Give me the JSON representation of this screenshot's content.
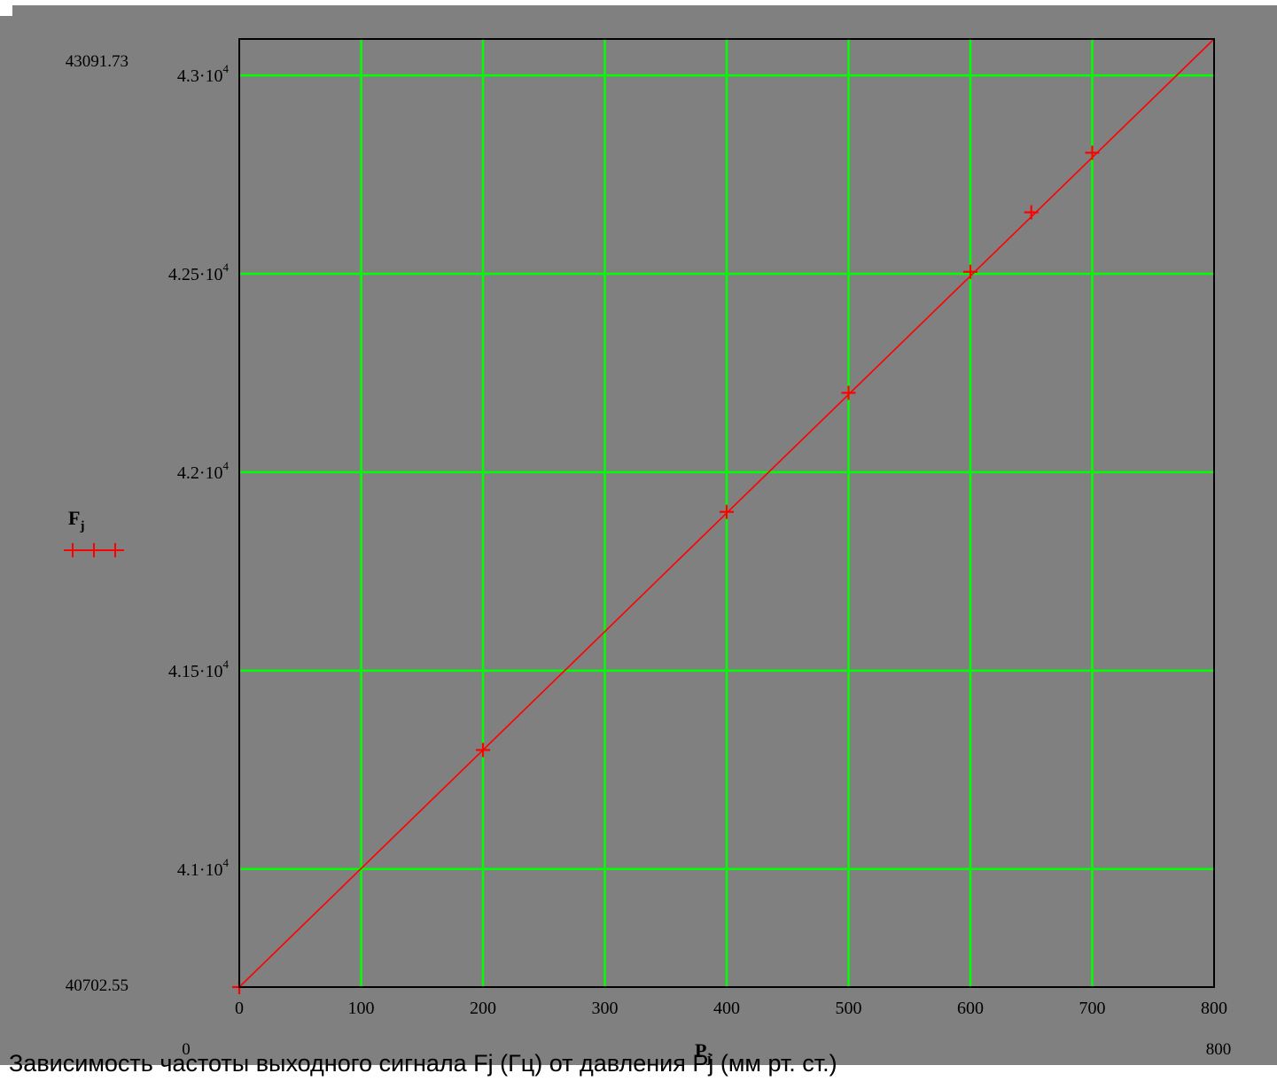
{
  "chart_data": {
    "type": "line",
    "caption": "Зависимость частоты выходного сигнала Fj (Гц) от давления Pj (мм рт. ст.)",
    "xlabel": "P",
    "xlabel_sub": "j",
    "ylabel": "F",
    "ylabel_sub": "j",
    "xlim": [
      0,
      800
    ],
    "ylim": [
      40702.55,
      43091.73
    ],
    "x_limit_labels": {
      "min": "0",
      "max": "800"
    },
    "y_limit_labels": {
      "min": "40702.55",
      "max": "43091.73"
    },
    "x_ticks": [
      {
        "value": 0,
        "label": "0"
      },
      {
        "value": 100,
        "label": "100"
      },
      {
        "value": 200,
        "label": "200"
      },
      {
        "value": 300,
        "label": "300"
      },
      {
        "value": 400,
        "label": "400"
      },
      {
        "value": 500,
        "label": "500"
      },
      {
        "value": 600,
        "label": "600"
      },
      {
        "value": 700,
        "label": "700"
      },
      {
        "value": 800,
        "label": "800"
      }
    ],
    "y_ticks": [
      {
        "value": 41000,
        "mantissa": "4.1·10",
        "exp": "4"
      },
      {
        "value": 41500,
        "mantissa": "4.15·10",
        "exp": "4"
      },
      {
        "value": 42000,
        "mantissa": "4.2·10",
        "exp": "4"
      },
      {
        "value": 42500,
        "mantissa": "4.25·10",
        "exp": "4"
      },
      {
        "value": 43000,
        "mantissa": "4.3·10",
        "exp": "4"
      }
    ],
    "grid": true,
    "series": [
      {
        "marker": "cross",
        "x": [
          0,
          200,
          400,
          500,
          600,
          650,
          700
        ],
        "y": [
          40702.55,
          41300,
          41900,
          42200,
          42505,
          42655,
          42805
        ]
      }
    ],
    "line_extent_x": [
      0,
      800
    ],
    "line_extent_y": [
      40702.55,
      43091.73
    ],
    "colors": {
      "background": "#808080",
      "grid": "#00ff00",
      "series": "#ff0000",
      "frame": "#000000",
      "text": "#000000"
    }
  }
}
